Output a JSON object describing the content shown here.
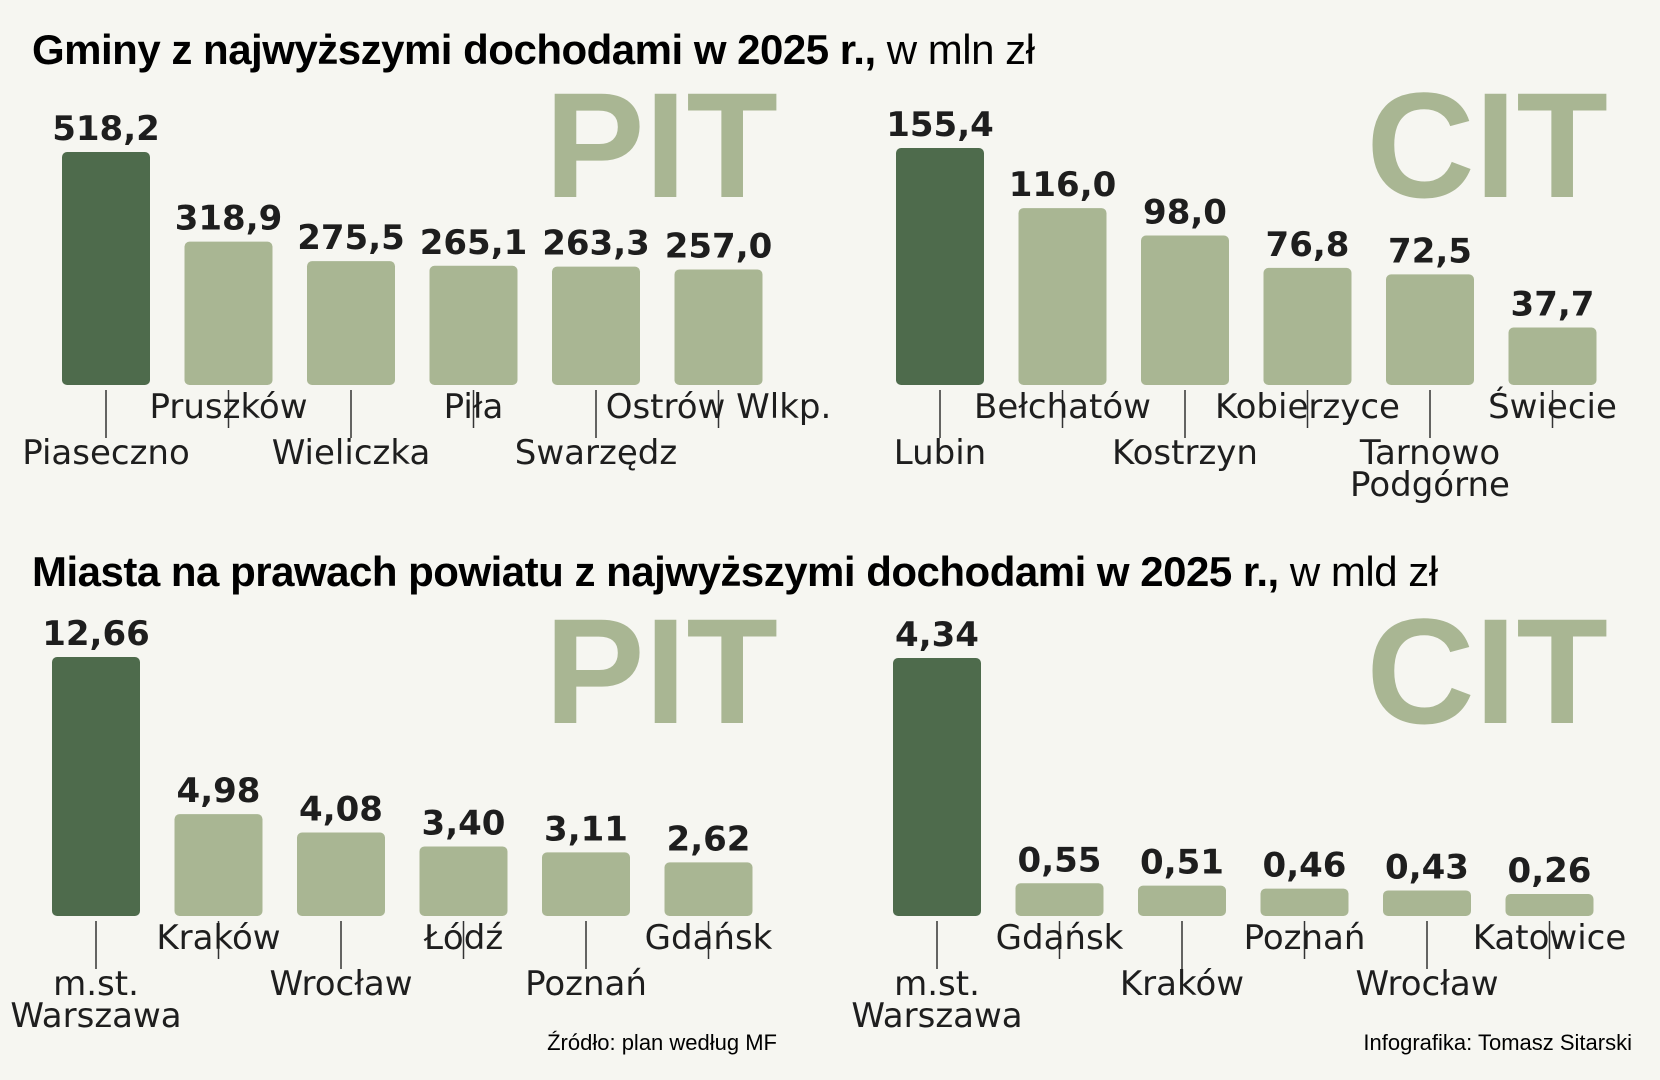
{
  "colors": {
    "highlight_bar": "#4e6b4c",
    "bar": "#a9b693",
    "watermark": "#a9b693",
    "text": "#1e1e1e",
    "background": "#f6f6f1"
  },
  "sections": [
    {
      "title": "Gminy z najwyższymi dochodami w 2025 r.,",
      "unit": " w mln zł"
    },
    {
      "title": "Miasta na prawach powiatu z najwyższymi dochodami w 2025 r.,",
      "unit": " w mld zł"
    }
  ],
  "chart_data": [
    {
      "type": "bar",
      "section": 0,
      "watermark": "PIT",
      "categories": [
        [
          "Piaseczno"
        ],
        [
          "Pruszków"
        ],
        [
          "Wieliczka"
        ],
        [
          "Piła"
        ],
        [
          "Swarzędz"
        ],
        [
          "Ostrów Wlkp."
        ]
      ],
      "values": [
        518.2,
        318.9,
        275.5,
        265.1,
        263.3,
        257.0
      ],
      "value_labels": [
        "518,2",
        "318,9",
        "275,5",
        "265,1",
        "263,3",
        "257,0"
      ],
      "highlight": 0
    },
    {
      "type": "bar",
      "section": 0,
      "watermark": "CIT",
      "categories": [
        [
          "Lubin"
        ],
        [
          "Bełchatów"
        ],
        [
          "Kostrzyn"
        ],
        [
          "Kobierzyce"
        ],
        [
          "Tarnowo",
          "Podgórne"
        ],
        [
          "Świecie"
        ]
      ],
      "values": [
        155.4,
        116.0,
        98.0,
        76.8,
        72.5,
        37.7
      ],
      "value_labels": [
        "155,4",
        "116,0",
        "98,0",
        "76,8",
        "72,5",
        "37,7"
      ],
      "highlight": 0
    },
    {
      "type": "bar",
      "section": 1,
      "watermark": "PIT",
      "categories": [
        [
          "m.st.",
          "Warszawa"
        ],
        [
          "Kraków"
        ],
        [
          "Wrocław"
        ],
        [
          "Łódź"
        ],
        [
          "Poznań"
        ],
        [
          "Gdańsk"
        ]
      ],
      "values": [
        12.66,
        4.98,
        4.08,
        3.4,
        3.11,
        2.62
      ],
      "value_labels": [
        "12,66",
        "4,98",
        "4,08",
        "3,40",
        "3,11",
        "2,62"
      ],
      "highlight": 0
    },
    {
      "type": "bar",
      "section": 1,
      "watermark": "CIT",
      "categories": [
        [
          "m.st.",
          "Warszawa"
        ],
        [
          "Gdańsk"
        ],
        [
          "Kraków"
        ],
        [
          "Poznań"
        ],
        [
          "Wrocław"
        ],
        [
          "Katowice"
        ]
      ],
      "values": [
        4.34,
        0.55,
        0.51,
        0.46,
        0.43,
        0.26
      ],
      "value_labels": [
        "4,34",
        "0,55",
        "0,51",
        "0,46",
        "0,43",
        "0,26"
      ],
      "highlight": 0
    }
  ],
  "footer": {
    "source": "Źródło: plan według MF",
    "credit": "Infografika: Tomasz Sitarski"
  }
}
